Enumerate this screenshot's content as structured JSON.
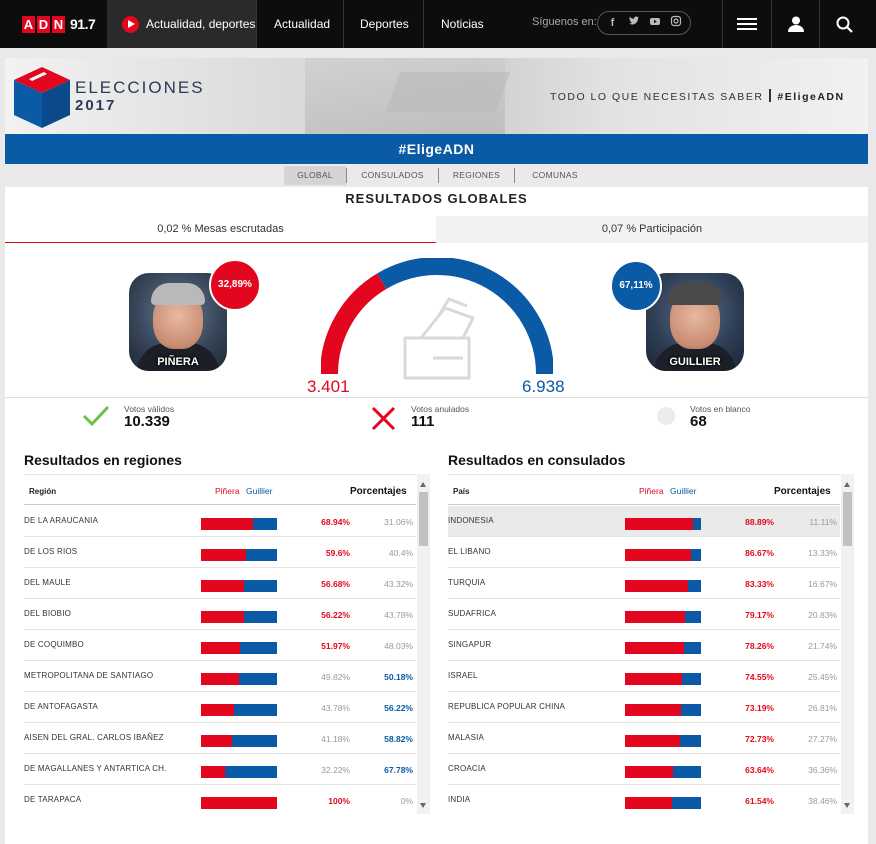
{
  "nav": {
    "logo_letters": [
      "A",
      "D",
      "N"
    ],
    "logo_freq": "91.7",
    "live_label": "Actualidad, deportes, n",
    "links": [
      "Actualidad",
      "Deportes",
      "Noticias"
    ],
    "follow_label": "Síguenos en:",
    "social": [
      "f",
      "t",
      "yt",
      "ig"
    ]
  },
  "banner": {
    "title": "ELECCIONES",
    "year": "2017",
    "slogan": "TODO LO QUE NECESITAS SABER",
    "slogan_tag": "#EligeADN"
  },
  "hashtag": "#EligeADN",
  "tabs": [
    "GLOBAL",
    "CONSULADOS",
    "REGIONES",
    "COMUNAS"
  ],
  "section_title": "RESULTADOS GLOBALES",
  "stats": {
    "mesas": "0,02 % Mesas escrutadas",
    "participacion": "0,07 % Participación"
  },
  "candidates": {
    "left": {
      "name": "PIÑERA",
      "pct": "32,89%",
      "votes": "3.401",
      "share": 0.3289
    },
    "right": {
      "name": "GUILLIER",
      "pct": "67,11%",
      "votes": "6.938",
      "share": 0.6711
    }
  },
  "vote_stats": [
    {
      "label": "Votos válidos",
      "value": "10.339",
      "icon": "check-icon"
    },
    {
      "label": "Votos anulados",
      "value": "111",
      "icon": "cross-icon"
    },
    {
      "label": "Votos en blanco",
      "value": "68",
      "icon": "blank-dot-icon"
    }
  ],
  "regions": {
    "title": "Resultados en regiones",
    "col_name": "Región",
    "col_pinera": "Piñera",
    "col_guillier": "Guillier",
    "col_pct": "Porcentajes",
    "rows": [
      {
        "name": "DE LA ARAUCANIA",
        "p": "68.94%",
        "g": "31.06%",
        "pv": 68.94
      },
      {
        "name": "DE LOS RIOS",
        "p": "59.6%",
        "g": "40.4%",
        "pv": 59.6
      },
      {
        "name": "DEL MAULE",
        "p": "56.68%",
        "g": "43.32%",
        "pv": 56.68
      },
      {
        "name": "DEL BIOBIO",
        "p": "56.22%",
        "g": "43.78%",
        "pv": 56.22
      },
      {
        "name": "DE COQUIMBO",
        "p": "51.97%",
        "g": "48.03%",
        "pv": 51.97
      },
      {
        "name": "METROPOLITANA DE SANTIAGO",
        "p": "49.82%",
        "g": "50.18%",
        "pv": 49.82
      },
      {
        "name": "DE ANTOFAGASTA",
        "p": "43.78%",
        "g": "56.22%",
        "pv": 43.78
      },
      {
        "name": "AISEN DEL GRAL. CARLOS IBAÑEZ",
        "p": "41.18%",
        "g": "58.82%",
        "pv": 41.18
      },
      {
        "name": "DE MAGALLANES Y ANTARTICA CH.",
        "p": "32.22%",
        "g": "67.78%",
        "pv": 32.22
      },
      {
        "name": "DE TARAPACA",
        "p": "100%",
        "g": "0%",
        "pv": 100
      }
    ]
  },
  "consulates": {
    "title": "Resultados en consulados",
    "col_name": "País",
    "col_pinera": "Piñera",
    "col_guillier": "Guillier",
    "col_pct": "Porcentajes",
    "rows": [
      {
        "name": "INDONESIA",
        "p": "88.89%",
        "g": "11.11%",
        "pv": 88.89
      },
      {
        "name": "EL LIBANO",
        "p": "86.67%",
        "g": "13.33%",
        "pv": 86.67
      },
      {
        "name": "TURQUIA",
        "p": "83.33%",
        "g": "16.67%",
        "pv": 83.33
      },
      {
        "name": "SUDAFRICA",
        "p": "79.17%",
        "g": "20.83%",
        "pv": 79.17
      },
      {
        "name": "SINGAPUR",
        "p": "78.26%",
        "g": "21.74%",
        "pv": 78.26
      },
      {
        "name": "ISRAEL",
        "p": "74.55%",
        "g": "25.45%",
        "pv": 74.55
      },
      {
        "name": "REPUBLICA POPULAR CHINA",
        "p": "73.19%",
        "g": "26.81%",
        "pv": 73.19
      },
      {
        "name": "MALASIA",
        "p": "72.73%",
        "g": "27.27%",
        "pv": 72.73
      },
      {
        "name": "CROACIA",
        "p": "63.64%",
        "g": "36.36%",
        "pv": 63.64
      },
      {
        "name": "INDIA",
        "p": "61.54%",
        "g": "38.46%",
        "pv": 61.54
      }
    ]
  },
  "colors": {
    "red": "#e2071f",
    "blue": "#0a5aa5"
  }
}
